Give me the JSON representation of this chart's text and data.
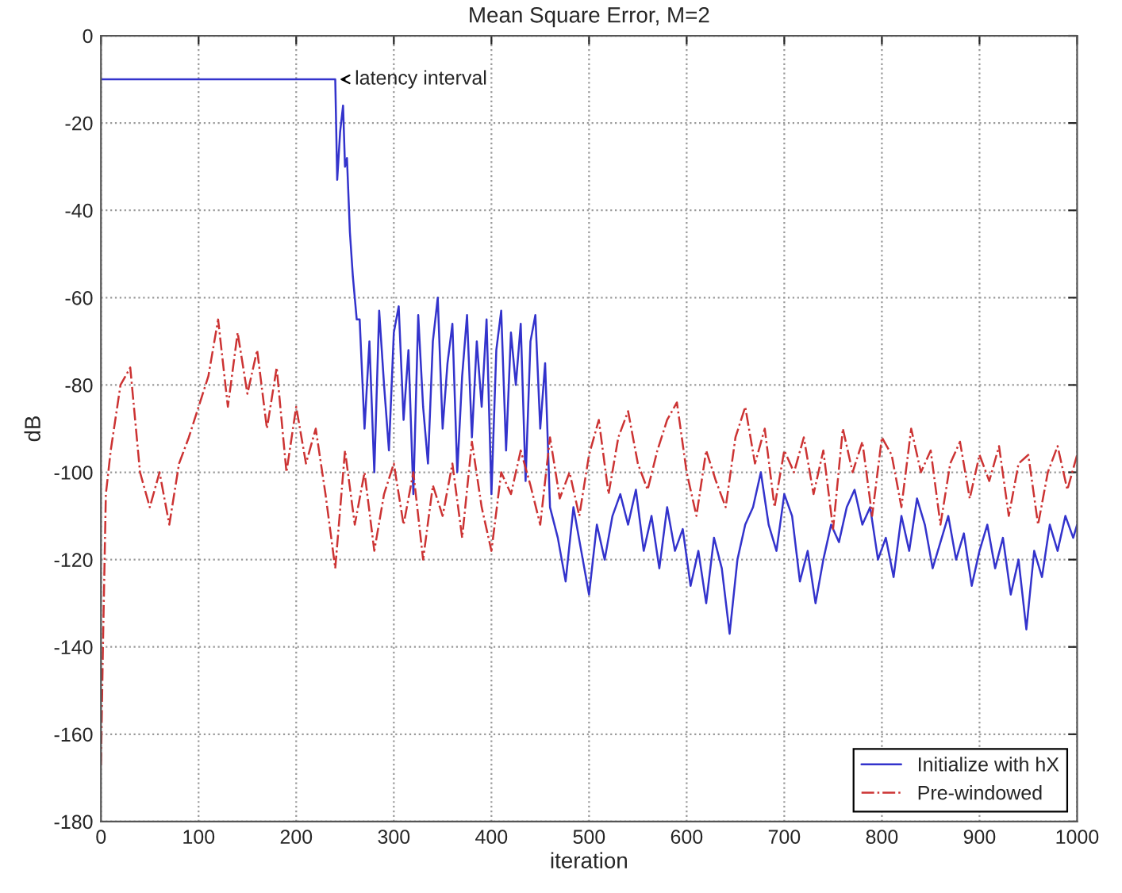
{
  "chart_data": {
    "type": "line",
    "title": "Mean Square Error, M=2",
    "xlabel": "iteration",
    "ylabel": "dB",
    "xlim": [
      0,
      1000
    ],
    "xticks": [
      0,
      100,
      200,
      300,
      400,
      500,
      600,
      700,
      800,
      900,
      1000
    ],
    "ylim": [
      -180,
      0
    ],
    "yticks": [
      -180,
      -160,
      -140,
      -120,
      -100,
      -80,
      -60,
      -40,
      -20,
      0
    ],
    "grid": true,
    "legend": "bottom right",
    "marker": "none",
    "annotations": [
      {
        "text": "latency interval",
        "x": 240,
        "y": -10
      }
    ],
    "series": [
      {
        "name": "Initialize with hX",
        "color": "#3333cc",
        "line_style": "solid",
        "x": [
          0,
          240,
          242,
          245,
          248,
          250,
          252,
          255,
          258,
          262,
          265,
          270,
          275,
          280,
          285,
          290,
          295,
          300,
          305,
          310,
          315,
          320,
          325,
          330,
          335,
          340,
          345,
          350,
          355,
          360,
          365,
          370,
          375,
          380,
          385,
          390,
          395,
          400,
          405,
          410,
          415,
          420,
          425,
          430,
          435,
          440,
          445,
          450,
          455,
          460,
          468,
          476,
          484,
          492,
          500,
          508,
          516,
          524,
          532,
          540,
          548,
          556,
          564,
          572,
          580,
          588,
          596,
          604,
          612,
          620,
          628,
          636,
          644,
          652,
          660,
          668,
          676,
          684,
          692,
          700,
          708,
          716,
          724,
          732,
          740,
          748,
          756,
          764,
          772,
          780,
          788,
          796,
          804,
          812,
          820,
          828,
          836,
          844,
          852,
          860,
          868,
          876,
          884,
          892,
          900,
          908,
          916,
          924,
          932,
          940,
          948,
          956,
          964,
          972,
          980,
          988,
          996,
          1000
        ],
        "values": [
          -10,
          -10,
          -33,
          -22,
          -16,
          -30,
          -28,
          -45,
          -55,
          -65,
          -65,
          -90,
          -70,
          -100,
          -63,
          -80,
          -95,
          -68,
          -62,
          -88,
          -72,
          -105,
          -64,
          -85,
          -98,
          -70,
          -60,
          -90,
          -75,
          -66,
          -100,
          -78,
          -64,
          -92,
          -70,
          -85,
          -65,
          -105,
          -72,
          -63,
          -95,
          -68,
          -80,
          -66,
          -102,
          -70,
          -64,
          -90,
          -75,
          -108,
          -115,
          -125,
          -108,
          -118,
          -128,
          -112,
          -120,
          -110,
          -105,
          -112,
          -104,
          -118,
          -110,
          -122,
          -108,
          -118,
          -113,
          -126,
          -118,
          -130,
          -115,
          -122,
          -137,
          -120,
          -112,
          -108,
          -100,
          -112,
          -118,
          -105,
          -110,
          -125,
          -118,
          -130,
          -120,
          -112,
          -116,
          -108,
          -104,
          -112,
          -108,
          -120,
          -115,
          -124,
          -110,
          -118,
          -106,
          -112,
          -122,
          -116,
          -110,
          -120,
          -114,
          -126,
          -118,
          -112,
          -122,
          -115,
          -128,
          -120,
          -136,
          -118,
          -124,
          -112,
          -118,
          -110,
          -115,
          -112
        ]
      },
      {
        "name": "Pre-windowed",
        "color": "#cc3333",
        "line_style": "dashed",
        "x": [
          0,
          2,
          5,
          10,
          20,
          30,
          40,
          50,
          60,
          70,
          80,
          90,
          100,
          110,
          120,
          130,
          140,
          150,
          160,
          170,
          180,
          190,
          200,
          210,
          220,
          230,
          240,
          250,
          260,
          270,
          280,
          290,
          300,
          310,
          320,
          330,
          340,
          350,
          360,
          370,
          380,
          390,
          400,
          410,
          420,
          430,
          440,
          450,
          460,
          470,
          480,
          490,
          500,
          510,
          520,
          530,
          540,
          550,
          560,
          570,
          580,
          590,
          600,
          610,
          620,
          630,
          640,
          650,
          660,
          670,
          680,
          690,
          700,
          710,
          720,
          730,
          740,
          750,
          760,
          770,
          780,
          790,
          800,
          810,
          820,
          830,
          840,
          850,
          860,
          870,
          880,
          890,
          900,
          910,
          920,
          930,
          940,
          950,
          960,
          970,
          980,
          990,
          1000
        ],
        "values": [
          -167,
          -140,
          -105,
          -95,
          -80,
          -76,
          -100,
          -108,
          -100,
          -112,
          -98,
          -92,
          -85,
          -78,
          -65,
          -85,
          -68,
          -82,
          -72,
          -90,
          -76,
          -100,
          -85,
          -98,
          -90,
          -105,
          -122,
          -95,
          -112,
          -100,
          -118,
          -105,
          -98,
          -112,
          -100,
          -120,
          -103,
          -110,
          -98,
          -115,
          -93,
          -108,
          -118,
          -100,
          -105,
          -95,
          -103,
          -112,
          -92,
          -106,
          -100,
          -110,
          -96,
          -88,
          -105,
          -92,
          -86,
          -98,
          -104,
          -95,
          -88,
          -84,
          -100,
          -110,
          -95,
          -102,
          -108,
          -92,
          -85,
          -98,
          -90,
          -108,
          -95,
          -100,
          -92,
          -105,
          -95,
          -113,
          -90,
          -100,
          -93,
          -110,
          -92,
          -96,
          -108,
          -90,
          -100,
          -95,
          -112,
          -98,
          -93,
          -106,
          -96,
          -102,
          -94,
          -110,
          -98,
          -96,
          -112,
          -100,
          -94,
          -104,
          -96
        ]
      }
    ]
  }
}
